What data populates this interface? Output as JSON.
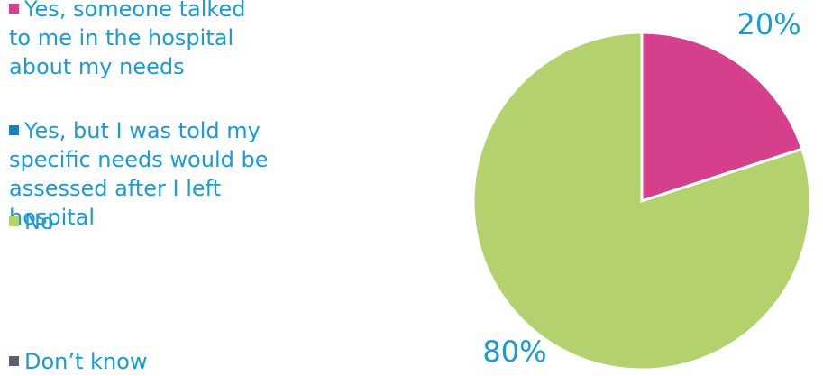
{
  "chart_data": {
    "type": "pie",
    "categories": [
      "Yes, someone talked to me in the hospital about my needs",
      "Yes, but I was told my specific needs would be assessed after I left hospital",
      "No",
      "Don’t know"
    ],
    "values": [
      20,
      0,
      80,
      0
    ],
    "value_labels": [
      "20%",
      null,
      "80%",
      null
    ],
    "colors": [
      "#d63f8c",
      "#1a7fc0",
      "#b3d16c",
      "#56606e"
    ],
    "legend": "left"
  }
}
